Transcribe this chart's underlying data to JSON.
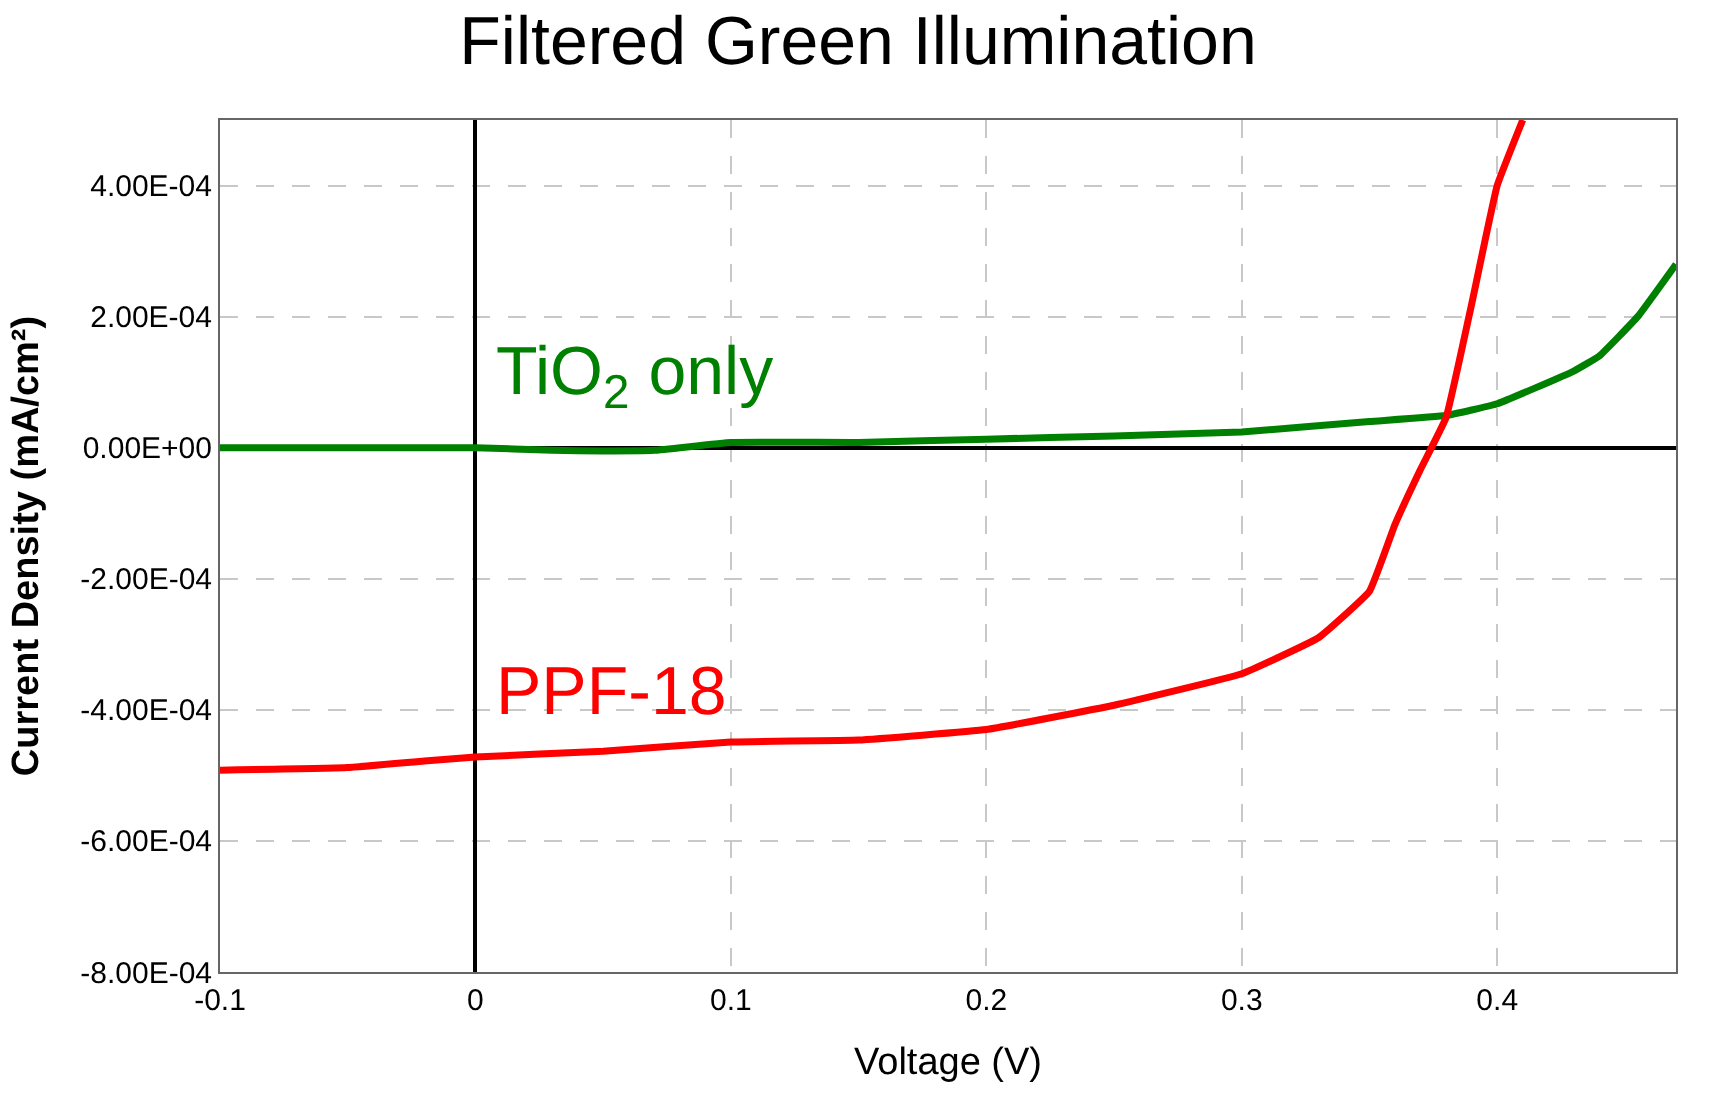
{
  "chart_data": {
    "type": "line",
    "title": "Filtered Green Illumination",
    "xlabel": "Voltage (V)",
    "ylabel": "Current Density (mA/cm²)",
    "xlim": [
      -0.1,
      0.47
    ],
    "xticks": [
      -0.1,
      0,
      0.1,
      0.2,
      0.3,
      0.4
    ],
    "ylim": [
      -0.0008,
      0.0005
    ],
    "yticks": [
      {
        "value": -0.0008,
        "label": "-8.00E-04"
      },
      {
        "value": -0.0006,
        "label": "-6.00E-04"
      },
      {
        "value": -0.0004,
        "label": "-4.00E-04"
      },
      {
        "value": -0.0002,
        "label": "-2.00E-04"
      },
      {
        "value": 0,
        "label": "0.00E+00"
      },
      {
        "value": 0.0002,
        "label": "2.00E-04"
      },
      {
        "value": 0.0004,
        "label": "4.00E-04"
      }
    ],
    "grid": true,
    "legend": false,
    "marker": "none",
    "line_style": "solid",
    "series": [
      {
        "name": "TiO$_{2}$ only",
        "color": "#008000",
        "x": [
          -0.1,
          -0.05,
          0,
          0.03,
          0.05,
          0.07,
          0.1,
          0.15,
          0.2,
          0.25,
          0.3,
          0.35,
          0.38,
          0.4,
          0.43,
          0.44,
          0.455,
          0.47
        ],
        "values": [
          0,
          0,
          0,
          -4e-06,
          -5e-06,
          -4e-06,
          8e-06,
          8e-06,
          1.3e-05,
          1.8e-05,
          2.4e-05,
          4e-05,
          4.9e-05,
          6.7e-05,
          0.000117,
          0.00014,
          0.0002,
          0.00028
        ]
      },
      {
        "name": "PPF-18",
        "color": "#ff0000",
        "x": [
          -0.1,
          -0.05,
          -0.02,
          0,
          0.05,
          0.1,
          0.15,
          0.2,
          0.25,
          0.3,
          0.33,
          0.35,
          0.36,
          0.37,
          0.38,
          0.39,
          0.4,
          0.41
        ],
        "values": [
          -0.000492,
          -0.000488,
          -0.000478,
          -0.000472,
          -0.000463,
          -0.000449,
          -0.000446,
          -0.00043,
          -0.000393,
          -0.000345,
          -0.00029,
          -0.000219,
          -0.000117,
          -3.3e-05,
          4.6e-05,
          0.000219,
          0.0004,
          0.0005
        ]
      }
    ]
  }
}
